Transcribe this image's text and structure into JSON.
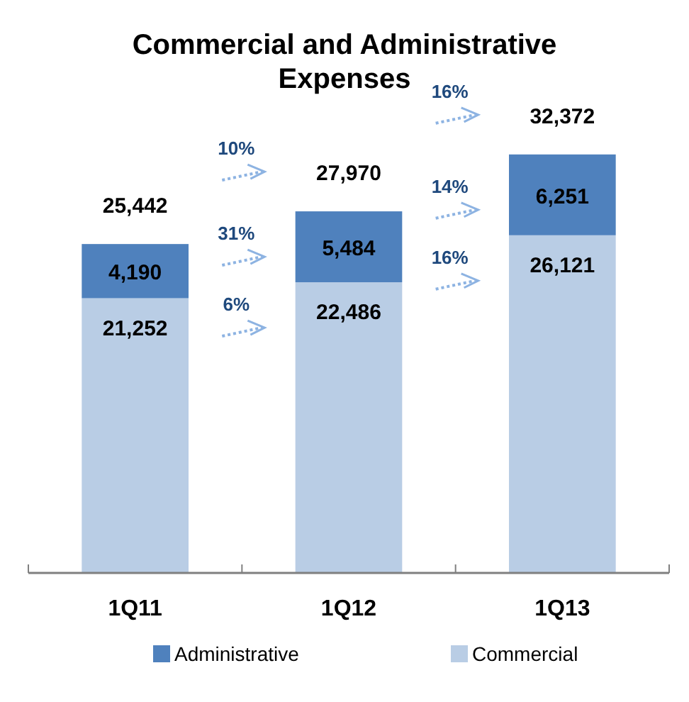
{
  "chart_data": {
    "type": "bar",
    "title": "Commercial and Administrative Expenses",
    "categories": [
      "1Q11",
      "1Q12",
      "1Q13"
    ],
    "stacked": true,
    "series": [
      {
        "name": "Commercial",
        "color": "#b9cde5",
        "values": [
          21252,
          22486,
          26121
        ],
        "value_labels": [
          "21,252",
          "22,486",
          "26,121"
        ]
      },
      {
        "name": "Administrative",
        "color": "#4f81bd",
        "values": [
          4190,
          5484,
          6251
        ],
        "value_labels": [
          "4,190",
          "5,484",
          "6,251"
        ]
      }
    ],
    "totals": [
      "25,442",
      "27,970",
      "32,372"
    ],
    "annotations": [
      "10%",
      "31%",
      "6%",
      "16%",
      "14%",
      "16%"
    ],
    "legend": "bottom"
  }
}
